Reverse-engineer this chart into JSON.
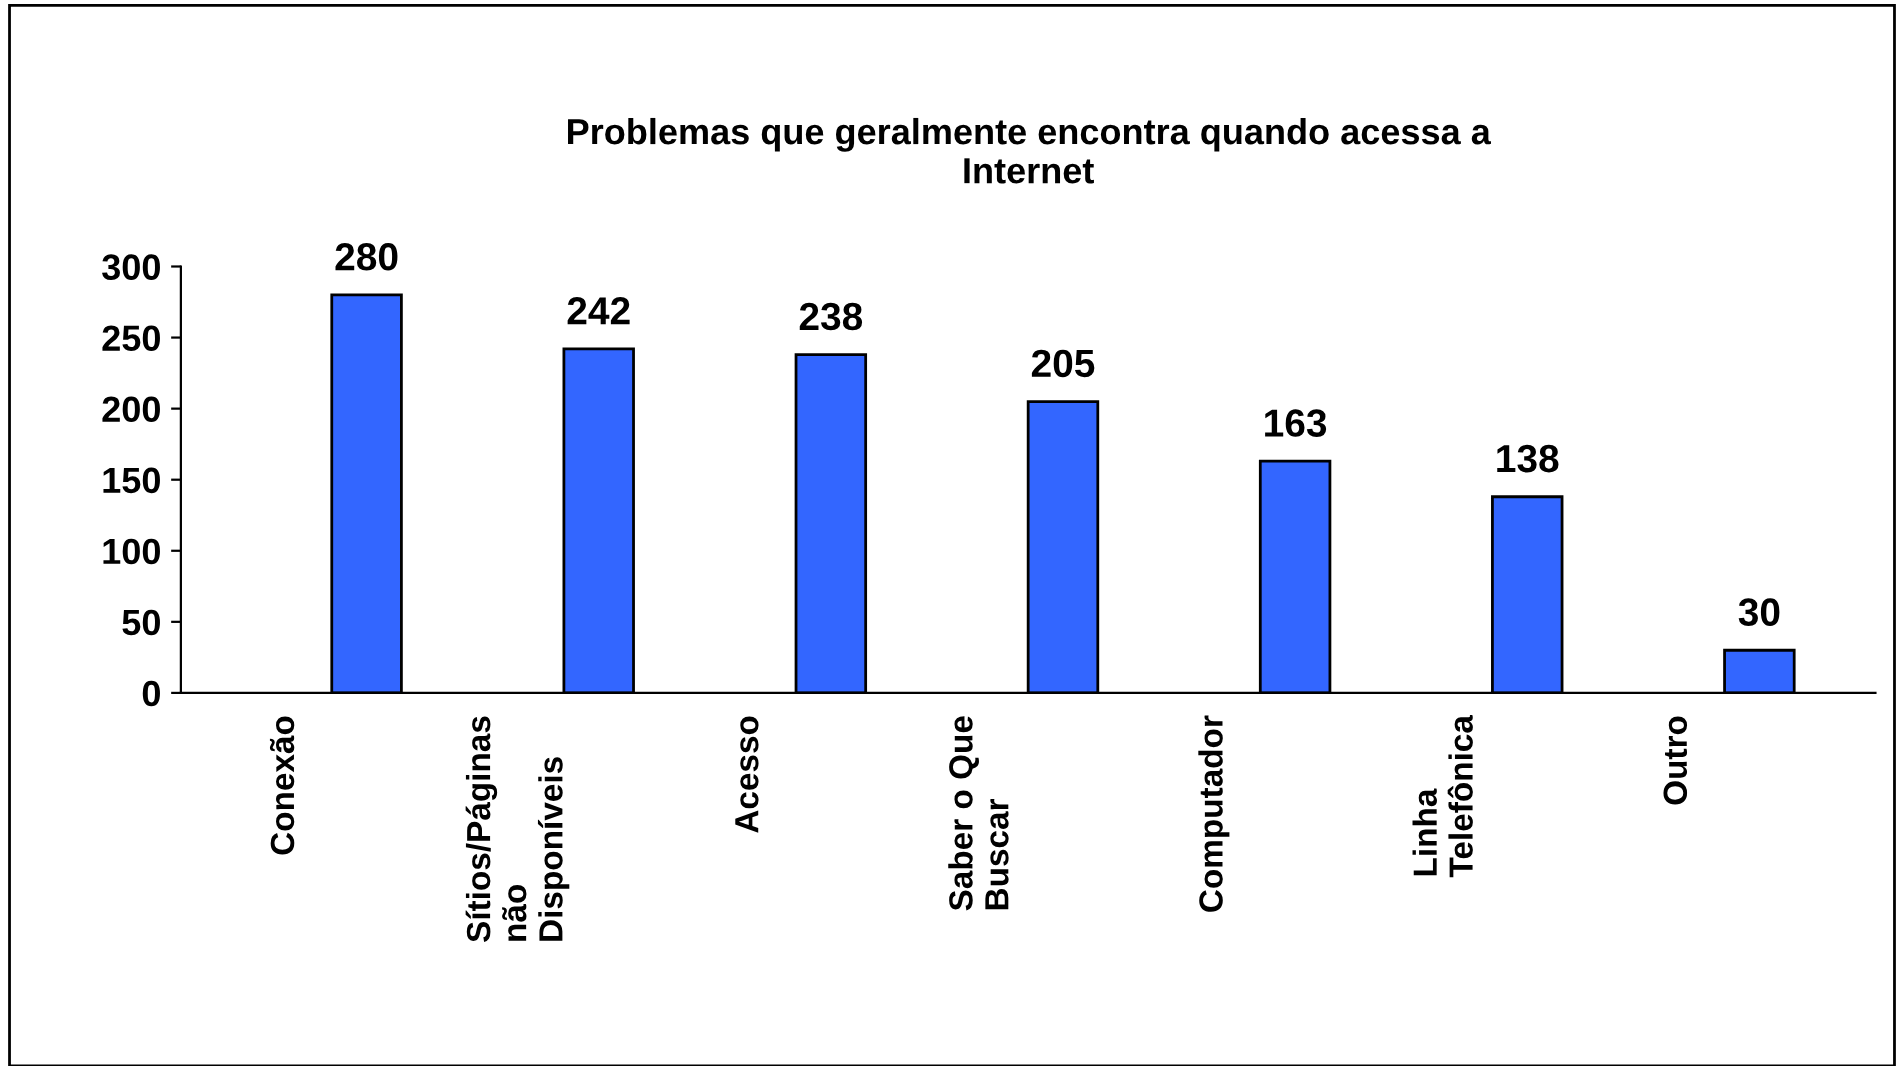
{
  "chart_data": {
    "type": "bar",
    "title": "Problemas que geralmente encontra quando acessa a\nInternet",
    "categories": [
      "Conexão",
      "Sítios/Páginas\nnão\nDisponíveis",
      "Acesso",
      "Saber o Que\nBuscar",
      "Computador",
      "Linha\nTelefônica",
      "Outro"
    ],
    "values": [
      280,
      242,
      238,
      205,
      163,
      138,
      30
    ],
    "color": "#3366ff",
    "ylim": [
      0,
      300
    ],
    "yticks": [
      0,
      50,
      100,
      150,
      200,
      250,
      300
    ],
    "grid": false,
    "data_labels": true
  }
}
